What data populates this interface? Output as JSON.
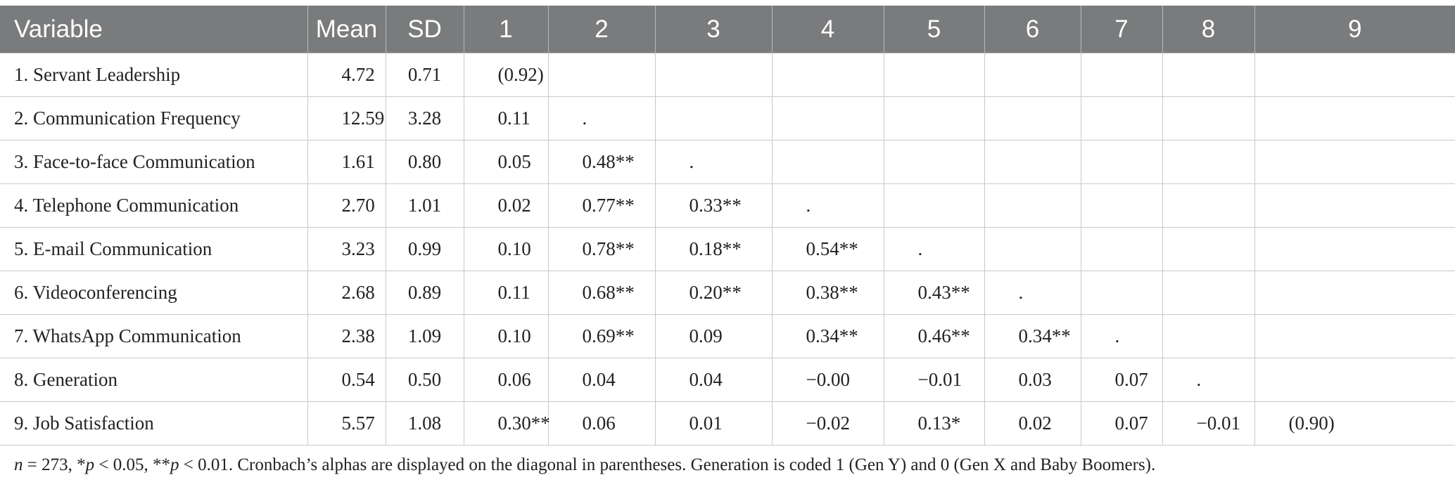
{
  "table": {
    "headers": [
      "Variable",
      "Mean",
      "SD",
      "1",
      "2",
      "3",
      "4",
      "5",
      "6",
      "7",
      "8",
      "9"
    ],
    "rows": [
      {
        "variable": "1. Servant Leadership",
        "mean": "4.72",
        "sd": "0.71",
        "c": [
          "(0.92)",
          "",
          "",
          "",
          "",
          "",
          "",
          "",
          ""
        ]
      },
      {
        "variable": "2. Communication Frequency",
        "mean": "12.59",
        "sd": "3.28",
        "c": [
          "0.11",
          ".",
          "",
          "",
          "",
          "",
          "",
          "",
          ""
        ]
      },
      {
        "variable": "3. Face-to-face Communication",
        "mean": "1.61",
        "sd": "0.80",
        "c": [
          "0.05",
          "0.48**",
          ".",
          "",
          "",
          "",
          "",
          "",
          ""
        ]
      },
      {
        "variable": "4. Telephone Communication",
        "mean": "2.70",
        "sd": "1.01",
        "c": [
          "0.02",
          "0.77**",
          "0.33**",
          ".",
          "",
          "",
          "",
          "",
          ""
        ]
      },
      {
        "variable": "5. E-mail Communication",
        "mean": "3.23",
        "sd": "0.99",
        "c": [
          "0.10",
          "0.78**",
          "0.18**",
          "0.54**",
          ".",
          "",
          "",
          "",
          ""
        ]
      },
      {
        "variable": "6. Videoconferencing",
        "mean": "2.68",
        "sd": "0.89",
        "c": [
          "0.11",
          "0.68**",
          "0.20**",
          "0.38**",
          "0.43**",
          ".",
          "",
          "",
          ""
        ]
      },
      {
        "variable": "7. WhatsApp Communication",
        "mean": "2.38",
        "sd": "1.09",
        "c": [
          "0.10",
          "0.69**",
          "0.09",
          "0.34**",
          "0.46**",
          "0.34**",
          ".",
          "",
          ""
        ]
      },
      {
        "variable": "8. Generation",
        "mean": "0.54",
        "sd": "0.50",
        "c": [
          "0.06",
          "0.04",
          "0.04",
          "−0.00",
          "−0.01",
          "0.03",
          "0.07",
          ".",
          ""
        ]
      },
      {
        "variable": "9. Job Satisfaction",
        "mean": "5.57",
        "sd": "1.08",
        "c": [
          "0.30**",
          "0.06",
          "0.01",
          "−0.02",
          "0.13*",
          "0.02",
          "0.07",
          "−0.01",
          "(0.90)"
        ]
      }
    ]
  },
  "note": {
    "n_label": "n",
    "n_value": " = 273, *",
    "p1_label": "p",
    "p1_value": " < 0.05, **",
    "p2_label": "p",
    "p2_value": " < 0.01. Cronbach’s alphas are displayed on the diagonal in parentheses. Generation is coded 1 (Gen Y) and 0 (Gen X and Baby Boomers)."
  }
}
